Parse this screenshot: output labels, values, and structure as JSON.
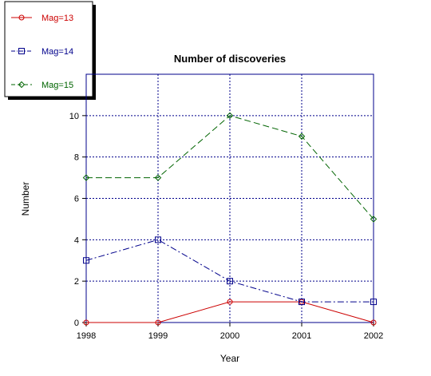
{
  "chart_data": {
    "type": "line",
    "title": "Number of discoveries",
    "xlabel": "Year",
    "ylabel": "Number",
    "x": [
      1998,
      1999,
      2000,
      2001,
      2002
    ],
    "xlim": [
      1998,
      2002
    ],
    "ylim": [
      0,
      12
    ],
    "yticks": [
      0,
      2,
      4,
      6,
      8,
      10
    ],
    "grid": true,
    "legend_position": "top-left",
    "series": [
      {
        "name": "Mag=13",
        "values": [
          0,
          0,
          1,
          1,
          0
        ],
        "color": "#cc0000",
        "marker": "circle",
        "line_style": "solid"
      },
      {
        "name": "Mag=14",
        "values": [
          3,
          4,
          2,
          1,
          1
        ],
        "color": "#00008b",
        "marker": "square",
        "line_style": "dash-dot"
      },
      {
        "name": "Mag=15",
        "values": [
          7,
          7,
          10,
          9,
          5
        ],
        "color": "#006400",
        "marker": "diamond",
        "line_style": "dashed"
      }
    ],
    "colors": {
      "axes": "#00008b",
      "grid": "#00008b"
    }
  }
}
